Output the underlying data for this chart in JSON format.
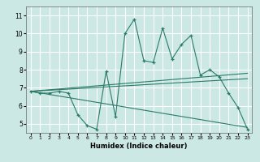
{
  "title": "",
  "xlabel": "Humidex (Indice chaleur)",
  "ylabel": "",
  "background_color": "#cce8e4",
  "grid_color": "#ffffff",
  "line_color": "#2a7a6a",
  "xlim": [
    -0.5,
    23.5
  ],
  "ylim": [
    4.5,
    11.5
  ],
  "xticks": [
    0,
    1,
    2,
    3,
    4,
    5,
    6,
    7,
    8,
    9,
    10,
    11,
    12,
    13,
    14,
    15,
    16,
    17,
    18,
    19,
    20,
    21,
    22,
    23
  ],
  "yticks": [
    5,
    6,
    7,
    8,
    9,
    10,
    11
  ],
  "series1_x": [
    0,
    1,
    2,
    3,
    4,
    5,
    6,
    7,
    8,
    9,
    10,
    11,
    12,
    13,
    14,
    15,
    16,
    17,
    18,
    19,
    20,
    21,
    22,
    23
  ],
  "series1_y": [
    6.8,
    6.7,
    6.7,
    6.8,
    6.7,
    5.5,
    4.9,
    4.7,
    7.9,
    5.4,
    10.0,
    10.8,
    8.5,
    8.4,
    10.3,
    8.6,
    9.4,
    9.9,
    7.7,
    8.0,
    7.6,
    6.7,
    5.9,
    4.7
  ],
  "series2_x": [
    0,
    23
  ],
  "series2_y": [
    6.8,
    7.8
  ],
  "series3_x": [
    0,
    23
  ],
  "series3_y": [
    6.8,
    7.5
  ],
  "series4_x": [
    0,
    23
  ],
  "series4_y": [
    6.8,
    4.8
  ]
}
